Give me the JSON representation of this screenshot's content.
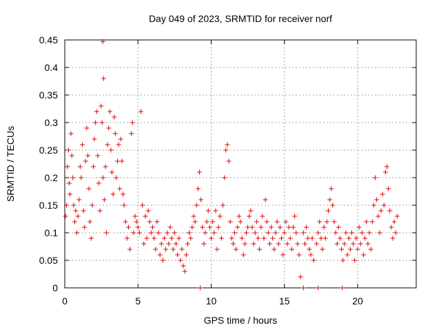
{
  "chart_data": {
    "type": "scatter",
    "title": "Day 049 of 2023, SRMTID for receiver norf",
    "xlabel": "GPS time / hours",
    "ylabel": "SRMTID / TECUs",
    "xlim": [
      0,
      24
    ],
    "ylim": [
      0,
      0.45
    ],
    "x_ticks": [
      0,
      5,
      10,
      15,
      20
    ],
    "y_ticks": [
      0,
      0.05,
      0.1,
      0.15,
      0.2,
      0.25,
      0.3,
      0.35,
      0.4,
      0.45
    ],
    "x_tick_labels": [
      "0",
      "5",
      "10",
      "15",
      "20"
    ],
    "y_tick_labels": [
      "0",
      "0.05",
      "0.1",
      "0.15",
      "0.2",
      "0.25",
      "0.3",
      "0.35",
      "0.4",
      "0.45"
    ],
    "grid": true,
    "marker": "+",
    "color": "#e00000",
    "points": [
      [
        0.05,
        0.13
      ],
      [
        0.12,
        0.15
      ],
      [
        0.18,
        0.22
      ],
      [
        0.25,
        0.25
      ],
      [
        0.3,
        0.19
      ],
      [
        0.35,
        0.17
      ],
      [
        0.42,
        0.28
      ],
      [
        0.48,
        0.24
      ],
      [
        0.55,
        0.2
      ],
      [
        0.6,
        0.15
      ],
      [
        0.68,
        0.12
      ],
      [
        0.75,
        0.14
      ],
      [
        0.82,
        0.1
      ],
      [
        0.9,
        0.13
      ],
      [
        0.98,
        0.16
      ],
      [
        1.05,
        0.22
      ],
      [
        1.12,
        0.2
      ],
      [
        1.2,
        0.26
      ],
      [
        1.28,
        0.14
      ],
      [
        1.35,
        0.11
      ],
      [
        1.42,
        0.23
      ],
      [
        1.5,
        0.29
      ],
      [
        1.58,
        0.24
      ],
      [
        1.65,
        0.18
      ],
      [
        1.72,
        0.12
      ],
      [
        1.8,
        0.09
      ],
      [
        1.88,
        0.15
      ],
      [
        1.95,
        0.22
      ],
      [
        2.02,
        0.27
      ],
      [
        2.1,
        0.3
      ],
      [
        2.18,
        0.32
      ],
      [
        2.25,
        0.24
      ],
      [
        2.32,
        0.19
      ],
      [
        2.4,
        0.14
      ],
      [
        2.48,
        0.33
      ],
      [
        2.55,
        0.3
      ],
      [
        2.62,
        0.2
      ],
      [
        2.7,
        0.16
      ],
      [
        2.78,
        0.22
      ],
      [
        2.85,
        0.1
      ],
      [
        2.92,
        0.26
      ],
      [
        3.0,
        0.29
      ],
      [
        3.08,
        0.32
      ],
      [
        3.15,
        0.25
      ],
      [
        3.22,
        0.21
      ],
      [
        3.3,
        0.17
      ],
      [
        3.38,
        0.31
      ],
      [
        3.45,
        0.28
      ],
      [
        3.52,
        0.2
      ],
      [
        3.6,
        0.23
      ],
      [
        3.68,
        0.26
      ],
      [
        3.75,
        0.18
      ],
      [
        3.82,
        0.27
      ],
      [
        3.9,
        0.23
      ],
      [
        3.98,
        0.17
      ],
      [
        4.05,
        0.15
      ],
      [
        4.15,
        0.12
      ],
      [
        4.25,
        0.09
      ],
      [
        4.35,
        0.11
      ],
      [
        4.45,
        0.07
      ],
      [
        4.55,
        0.28
      ],
      [
        4.62,
        0.3
      ],
      [
        4.7,
        0.1
      ],
      [
        4.8,
        0.13
      ],
      [
        4.9,
        0.12
      ],
      [
        5.0,
        0.11
      ],
      [
        5.1,
        0.1
      ],
      [
        5.2,
        0.32
      ],
      [
        5.3,
        0.15
      ],
      [
        5.4,
        0.08
      ],
      [
        5.5,
        0.13
      ],
      [
        5.6,
        0.09
      ],
      [
        5.7,
        0.14
      ],
      [
        5.8,
        0.12
      ],
      [
        5.9,
        0.1
      ],
      [
        6.0,
        0.11
      ],
      [
        6.1,
        0.09
      ],
      [
        6.2,
        0.07
      ],
      [
        6.3,
        0.12
      ],
      [
        6.4,
        0.1
      ],
      [
        6.5,
        0.06
      ],
      [
        6.6,
        0.08
      ],
      [
        6.7,
        0.05
      ],
      [
        6.8,
        0.09
      ],
      [
        6.9,
        0.07
      ],
      [
        7.0,
        0.1
      ],
      [
        7.1,
        0.08
      ],
      [
        7.2,
        0.11
      ],
      [
        7.3,
        0.09
      ],
      [
        7.4,
        0.07
      ],
      [
        7.5,
        0.1
      ],
      [
        7.6,
        0.08
      ],
      [
        7.7,
        0.06
      ],
      [
        7.8,
        0.09
      ],
      [
        7.9,
        0.05
      ],
      [
        8.0,
        0.07
      ],
      [
        8.1,
        0.04
      ],
      [
        8.2,
        0.03
      ],
      [
        8.3,
        0.06
      ],
      [
        8.4,
        0.08
      ],
      [
        8.5,
        0.1
      ],
      [
        8.6,
        0.09
      ],
      [
        8.7,
        0.11
      ],
      [
        8.8,
        0.13
      ],
      [
        8.9,
        0.12
      ],
      [
        9.0,
        0.15
      ],
      [
        9.1,
        0.18
      ],
      [
        9.2,
        0.21
      ],
      [
        9.3,
        0.16
      ],
      [
        9.4,
        0.11
      ],
      [
        9.5,
        0.08
      ],
      [
        9.6,
        0.1
      ],
      [
        9.7,
        0.12
      ],
      [
        9.8,
        0.14
      ],
      [
        9.9,
        0.11
      ],
      [
        10.0,
        0.09
      ],
      [
        10.1,
        0.12
      ],
      [
        10.2,
        0.1
      ],
      [
        10.3,
        0.14
      ],
      [
        10.4,
        0.07
      ],
      [
        10.5,
        0.11
      ],
      [
        10.6,
        0.13
      ],
      [
        10.7,
        0.09
      ],
      [
        10.8,
        0.15
      ],
      [
        10.9,
        0.2
      ],
      [
        11.0,
        0.25
      ],
      [
        11.1,
        0.26
      ],
      [
        11.2,
        0.23
      ],
      [
        11.3,
        0.12
      ],
      [
        11.4,
        0.09
      ],
      [
        11.5,
        0.08
      ],
      [
        11.6,
        0.1
      ],
      [
        11.7,
        0.07
      ],
      [
        11.8,
        0.11
      ],
      [
        11.9,
        0.13
      ],
      [
        12.0,
        0.12
      ],
      [
        12.1,
        0.09
      ],
      [
        12.2,
        0.06
      ],
      [
        12.3,
        0.08
      ],
      [
        12.4,
        0.1
      ],
      [
        12.5,
        0.11
      ],
      [
        12.6,
        0.13
      ],
      [
        12.7,
        0.14
      ],
      [
        12.8,
        0.11
      ],
      [
        12.9,
        0.08
      ],
      [
        13.0,
        0.1
      ],
      [
        13.1,
        0.12
      ],
      [
        13.2,
        0.09
      ],
      [
        13.3,
        0.07
      ],
      [
        13.4,
        0.11
      ],
      [
        13.5,
        0.13
      ],
      [
        13.6,
        0.09
      ],
      [
        13.7,
        0.16
      ],
      [
        13.8,
        0.12
      ],
      [
        13.9,
        0.1
      ],
      [
        14.0,
        0.08
      ],
      [
        14.1,
        0.11
      ],
      [
        14.2,
        0.09
      ],
      [
        14.3,
        0.07
      ],
      [
        14.4,
        0.1
      ],
      [
        14.5,
        0.12
      ],
      [
        14.6,
        0.08
      ],
      [
        14.7,
        0.11
      ],
      [
        14.8,
        0.09
      ],
      [
        14.9,
        0.06
      ],
      [
        15.0,
        0.1
      ],
      [
        15.1,
        0.12
      ],
      [
        15.2,
        0.08
      ],
      [
        15.3,
        0.11
      ],
      [
        15.4,
        0.09
      ],
      [
        15.5,
        0.07
      ],
      [
        15.6,
        0.11
      ],
      [
        15.7,
        0.13
      ],
      [
        15.8,
        0.1
      ],
      [
        15.9,
        0.08
      ],
      [
        16.0,
        0.06
      ],
      [
        16.1,
        0.02
      ],
      [
        16.3,
        0.1
      ],
      [
        16.4,
        0.08
      ],
      [
        16.5,
        0.11
      ],
      [
        16.6,
        0.09
      ],
      [
        16.7,
        0.07
      ],
      [
        16.8,
        0.06
      ],
      [
        16.9,
        0.09
      ],
      [
        17.0,
        0.05
      ],
      [
        17.2,
        0.08
      ],
      [
        17.3,
        0.1
      ],
      [
        17.4,
        0.12
      ],
      [
        17.5,
        0.09
      ],
      [
        17.6,
        0.07
      ],
      [
        17.7,
        0.11
      ],
      [
        17.8,
        0.09
      ],
      [
        17.9,
        0.12
      ],
      [
        18.0,
        0.14
      ],
      [
        18.1,
        0.16
      ],
      [
        18.2,
        0.18
      ],
      [
        18.3,
        0.15
      ],
      [
        18.4,
        0.12
      ],
      [
        18.5,
        0.1
      ],
      [
        18.6,
        0.08
      ],
      [
        18.7,
        0.11
      ],
      [
        18.8,
        0.09
      ],
      [
        18.9,
        0.07
      ],
      [
        19.0,
        0.05
      ],
      [
        19.1,
        0.08
      ],
      [
        19.2,
        0.1
      ],
      [
        19.3,
        0.06
      ],
      [
        19.4,
        0.09
      ],
      [
        19.5,
        0.07
      ],
      [
        19.6,
        0.1
      ],
      [
        19.7,
        0.08
      ],
      [
        19.8,
        0.05
      ],
      [
        19.9,
        0.09
      ],
      [
        20.0,
        0.07
      ],
      [
        20.1,
        0.11
      ],
      [
        20.2,
        0.08
      ],
      [
        20.3,
        0.1
      ],
      [
        20.4,
        0.06
      ],
      [
        20.5,
        0.09
      ],
      [
        20.6,
        0.12
      ],
      [
        20.7,
        0.08
      ],
      [
        20.8,
        0.1
      ],
      [
        20.9,
        0.07
      ],
      [
        21.0,
        0.12
      ],
      [
        21.1,
        0.15
      ],
      [
        21.2,
        0.2
      ],
      [
        21.3,
        0.16
      ],
      [
        21.4,
        0.13
      ],
      [
        21.5,
        0.1
      ],
      [
        21.6,
        0.14
      ],
      [
        21.7,
        0.17
      ],
      [
        21.8,
        0.15
      ],
      [
        21.9,
        0.21
      ],
      [
        22.0,
        0.22
      ],
      [
        22.1,
        0.18
      ],
      [
        22.2,
        0.14
      ],
      [
        22.3,
        0.11
      ],
      [
        22.4,
        0.09
      ],
      [
        22.5,
        0.12
      ],
      [
        22.6,
        0.1
      ],
      [
        22.7,
        0.13
      ],
      [
        2.6,
        0.447
      ],
      [
        2.65,
        0.38
      ],
      [
        9.25,
        0.0
      ],
      [
        16.3,
        0.0
      ],
      [
        17.3,
        0.0
      ],
      [
        18.95,
        0.0
      ]
    ]
  }
}
